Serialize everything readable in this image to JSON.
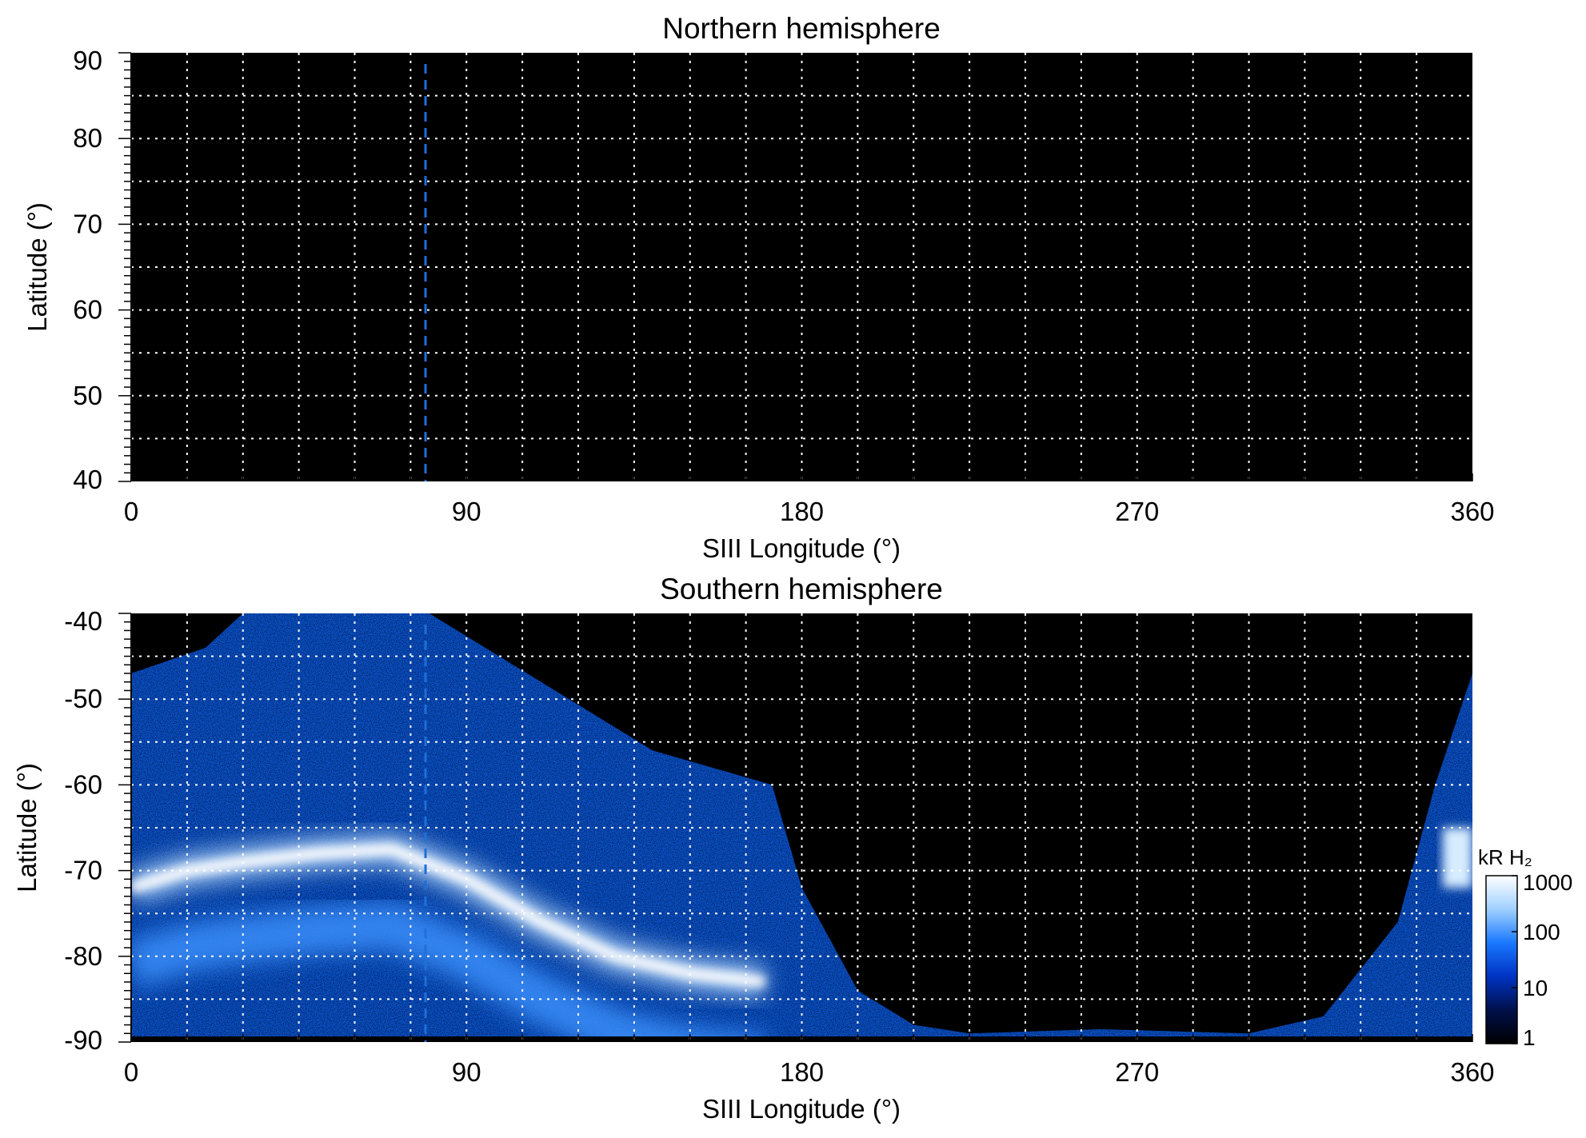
{
  "chart_data": [
    {
      "type": "heatmap",
      "title": "Northern hemisphere",
      "xlabel": "SIII Longitude (°)",
      "ylabel": "Latitude (°)",
      "xlim": [
        0,
        360
      ],
      "ylim": [
        40,
        90
      ],
      "xticks": [
        "0",
        "90",
        "180",
        "270",
        "360"
      ],
      "yticks": [
        "40",
        "50",
        "60",
        "70",
        "80",
        "90"
      ],
      "grid": true,
      "background": "#000000",
      "emission": "none visible",
      "marker_line": {
        "style": "dashed",
        "color": "#1f6fd6",
        "longitude": 79
      }
    },
    {
      "type": "heatmap",
      "title": "Southern hemisphere",
      "xlabel": "SIII Longitude (°)",
      "ylabel": "Latitude (°)",
      "xlim": [
        0,
        360
      ],
      "ylim": [
        -90,
        -40
      ],
      "xticks": [
        "0",
        "90",
        "180",
        "270",
        "360"
      ],
      "yticks": [
        "-40",
        "-50",
        "-60",
        "-70",
        "-80",
        "-90"
      ],
      "grid": true,
      "background": "#000000",
      "marker_line": {
        "style": "dashed",
        "color": "#1f6fd6",
        "longitude": 79
      },
      "coverage_boundary": [
        [
          0,
          -47
        ],
        [
          20,
          -44
        ],
        [
          30,
          -40
        ],
        [
          80,
          -40
        ],
        [
          110,
          -48
        ],
        [
          140,
          -56
        ],
        [
          172,
          -60
        ],
        [
          180,
          -72
        ],
        [
          195,
          -84
        ],
        [
          210,
          -88
        ],
        [
          225,
          -89
        ],
        [
          260,
          -88.5
        ],
        [
          300,
          -89
        ],
        [
          320,
          -87
        ],
        [
          340,
          -76
        ],
        [
          350,
          -60
        ],
        [
          360,
          -47
        ]
      ],
      "main_oval": [
        [
          0,
          -72
        ],
        [
          15,
          -70
        ],
        [
          30,
          -69
        ],
        [
          50,
          -68
        ],
        [
          70,
          -67.5
        ],
        [
          90,
          -71
        ],
        [
          110,
          -76
        ],
        [
          130,
          -80
        ],
        [
          150,
          -82
        ],
        [
          170,
          -83
        ]
      ],
      "bright_region_east": {
        "lon": [
          352,
          360
        ],
        "lat": [
          -72,
          -65
        ]
      },
      "colorbar": {
        "label": "kR H₂",
        "scale": "log",
        "range": [
          1,
          1000
        ],
        "ticks": [
          "1000",
          "100",
          "10",
          "1"
        ],
        "colors": [
          "#000000",
          "#00104a",
          "#0033c2",
          "#1a78ff",
          "#9fd0ff",
          "#ffffff"
        ]
      }
    }
  ]
}
